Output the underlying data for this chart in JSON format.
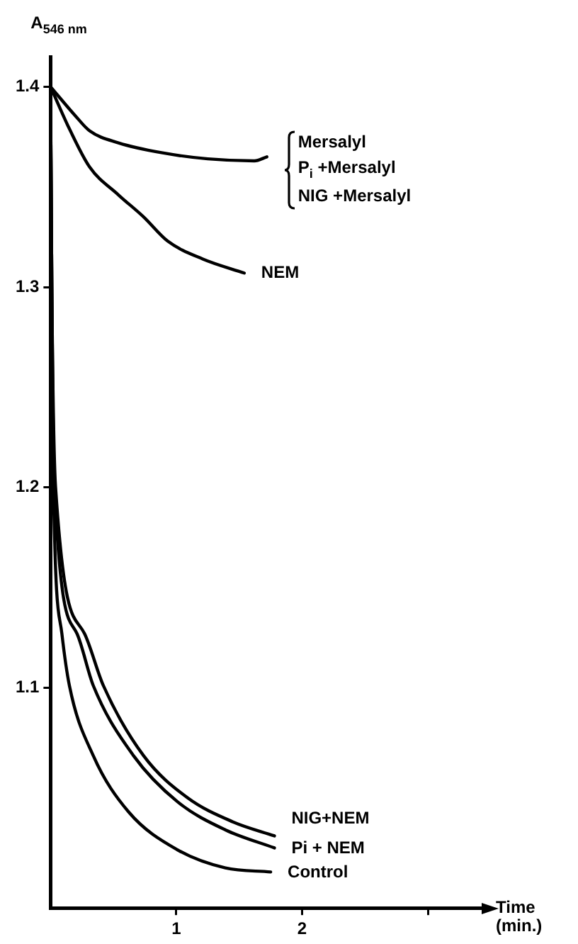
{
  "chart_data": {
    "type": "line",
    "ylabel": "A$_{546 nm}$",
    "xlabel": "Time (min.)",
    "xlim": [
      0,
      3.45
    ],
    "xticks": [
      1,
      2,
      {
        "value": 3,
        "label": null
      }
    ],
    "ylim": [
      0.99,
      1.415
    ],
    "yticks": [
      1.1,
      1.2,
      1.3,
      1.4
    ],
    "grid": false,
    "legend": false,
    "marker": "none",
    "line_style": "solid",
    "series": [
      {
        "color": "#000000",
        "x": [
          0,
          0.19,
          0.31,
          0.54,
          0.89,
          1.25,
          1.62,
          1.72
        ],
        "values": [
          1.4,
          1.386,
          1.378,
          1.372,
          1.367,
          1.364,
          1.363,
          1.365
        ]
      },
      {
        "name": "NEM",
        "color": "#000000",
        "x": [
          0,
          0.15,
          0.31,
          0.54,
          0.74,
          0.93,
          1.21,
          1.54
        ],
        "values": [
          1.4,
          1.379,
          1.36,
          1.346,
          1.335,
          1.323,
          1.314,
          1.307
        ]
      },
      {
        "name": "NIG+NEM",
        "color": "#000000",
        "x": [
          0,
          0.01,
          0.04,
          0.27,
          0.42,
          0.74,
          1.09,
          1.45,
          1.78
        ],
        "values": [
          1.4,
          1.3,
          1.2,
          1.127,
          1.101,
          1.066,
          1.045,
          1.033,
          1.026
        ]
      },
      {
        "name": "Pi + NEM",
        "color": "#000000",
        "x": [
          0,
          0.01,
          0.03,
          0.21,
          0.34,
          0.66,
          1.01,
          1.39,
          1.78
        ],
        "values": [
          1.4,
          1.3,
          1.2,
          1.127,
          1.101,
          1.066,
          1.043,
          1.029,
          1.02
        ]
      },
      {
        "name": "Control",
        "color": "#000000",
        "x": [
          0,
          0.01,
          0.02,
          0.09,
          0.15,
          0.34,
          0.62,
          1.01,
          1.39,
          1.75
        ],
        "values": [
          1.4,
          1.3,
          1.209,
          1.127,
          1.101,
          1.066,
          1.038,
          1.019,
          1.01,
          1.008
        ]
      }
    ],
    "annotations": [
      "Mersalyl",
      "P$_{i}$ +Mersalyl",
      "NIG +Mersalyl"
    ]
  }
}
